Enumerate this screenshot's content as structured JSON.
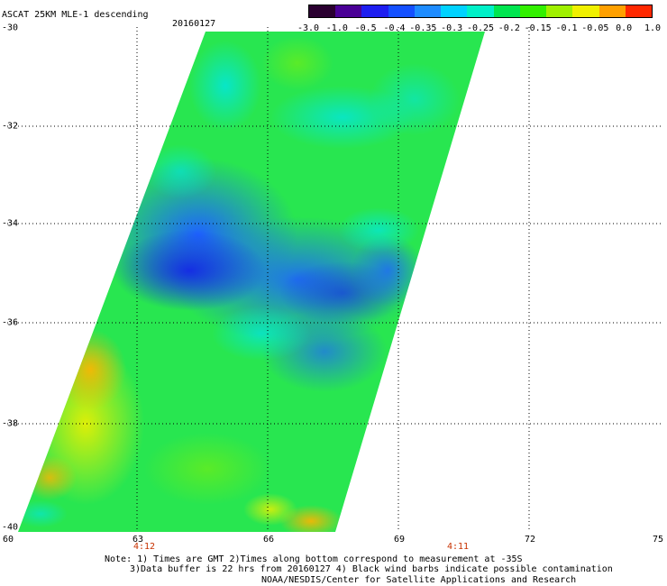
{
  "title": {
    "product": "ASCAT 25KM MLE-1 descending",
    "date": "20160127"
  },
  "colorbar": {
    "labels": [
      "-3.0",
      "-1.0",
      "-0.5",
      "-0.4",
      "-0.35",
      "-0.3",
      "-0.25",
      "-0.2",
      "-0.15",
      "-0.1",
      "-0.05",
      "0.0",
      "1.0"
    ],
    "colors": [
      "#2a0030",
      "#4a0096",
      "#1e1ef0",
      "#1450ff",
      "#1e8cff",
      "#00d2ff",
      "#00f0c8",
      "#00e650",
      "#32f000",
      "#a0f000",
      "#f0f000",
      "#ffa000",
      "#ff2800"
    ]
  },
  "axes": {
    "lat_labels": [
      "-30",
      "-32",
      "-34",
      "-36",
      "-38",
      "-40"
    ],
    "lon_labels": [
      "60",
      "63",
      "66",
      "69",
      "72",
      "75"
    ],
    "lat_range": [
      -40,
      -30
    ],
    "lon_range": [
      60,
      75
    ]
  },
  "times": [
    {
      "label": "4:12",
      "lon": 63
    },
    {
      "label": "4:11",
      "lon": 70.3
    }
  ],
  "notes": {
    "line1": "Note: 1) Times are GMT 2)Times along bottom correspond to measurement at -35S",
    "line2": "3)Data buffer is 22 hrs from 20160127 4) Black wind barbs indicate possible contamination",
    "line3": "NOAA/NESDIS/Center for Satellite Applications and Research"
  }
}
